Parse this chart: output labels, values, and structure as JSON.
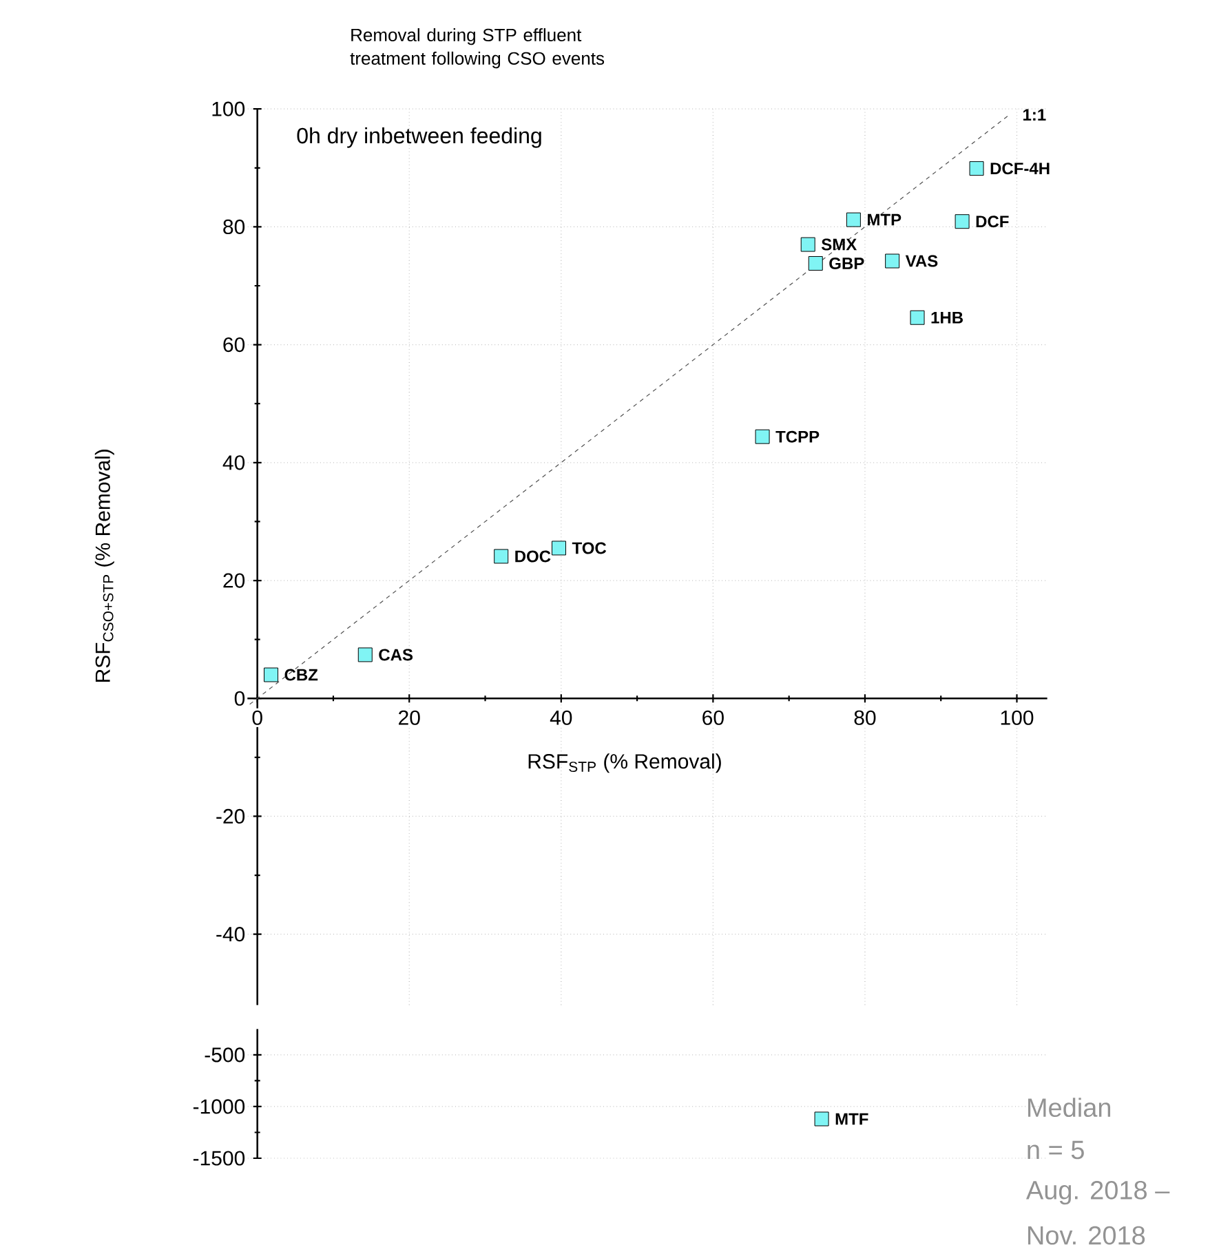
{
  "chart_data": [
    {
      "type": "scatter",
      "title": "Removal during STP effluent treatment following CSO events",
      "subtitle": "0h dry inbetween feeding",
      "xlabel": "RSF$_{STP}$ (% Removal)",
      "ylabel": "RSF$_{CSO+STP}$ (% Removal)",
      "xlim": [
        -3,
        104
      ],
      "ylim": [
        -52,
        100
      ],
      "xticks": [
        0,
        20,
        40,
        60,
        80,
        100
      ],
      "yticks": [
        -40,
        -20,
        0,
        20,
        40,
        60,
        80,
        100
      ],
      "grid": true,
      "marker": "square",
      "series": [
        {
          "type": "scatter",
          "color": "#80f4f4",
          "x": [
            1.8,
            14.2,
            32.1,
            39.7,
            66.5,
            72.5,
            73.5,
            78.5,
            83.6,
            86.9,
            92.8,
            94.7
          ],
          "values": [
            4.0,
            7.4,
            24.1,
            25.5,
            44.4,
            77.0,
            73.8,
            81.2,
            74.2,
            64.6,
            80.9,
            89.9
          ]
        },
        {
          "type": "line",
          "color": "#505050",
          "line_style": "dashed",
          "marker": "none",
          "x": [
            -1,
            99
          ],
          "values": [
            -1,
            99
          ]
        }
      ],
      "annotations": [
        {
          "text": "CBZ",
          "x": 1.8,
          "y": 4.0
        },
        {
          "text": "CAS",
          "x": 14.2,
          "y": 7.4
        },
        {
          "text": "DOC",
          "x": 32.1,
          "y": 24.1
        },
        {
          "text": "TOC",
          "x": 39.7,
          "y": 25.5
        },
        {
          "text": "TCPP",
          "x": 66.5,
          "y": 44.4
        },
        {
          "text": "SMX",
          "x": 72.5,
          "y": 77.0
        },
        {
          "text": "GBP",
          "x": 73.5,
          "y": 73.8
        },
        {
          "text": "MTP",
          "x": 78.5,
          "y": 81.2
        },
        {
          "text": "VAS",
          "x": 83.6,
          "y": 74.2
        },
        {
          "text": "1HB",
          "x": 86.9,
          "y": 64.6
        },
        {
          "text": "DCF",
          "x": 92.8,
          "y": 80.9
        },
        {
          "text": "DCF-4H",
          "x": 94.7,
          "y": 89.9
        },
        {
          "text": "1:1",
          "x": 99,
          "y": 99
        }
      ]
    },
    {
      "type": "scatter",
      "xlim": [
        -3,
        104
      ],
      "ylim": [
        -1500,
        -250
      ],
      "xticks": [
        0,
        20,
        40,
        60,
        80,
        100
      ],
      "yticks": [
        -1500,
        -1000,
        -500
      ],
      "tick_labels": "y",
      "grid": true,
      "marker": "square",
      "series": [
        {
          "type": "scatter",
          "color": "#80f4f4",
          "x": [
            74.3
          ],
          "values": [
            -1120
          ]
        }
      ],
      "annotations": [
        {
          "text": "MTF",
          "x": 74.3,
          "y": -1120
        },
        "Median",
        "n = 5",
        "Aug. 2018 –",
        "Nov. 2018"
      ]
    }
  ]
}
